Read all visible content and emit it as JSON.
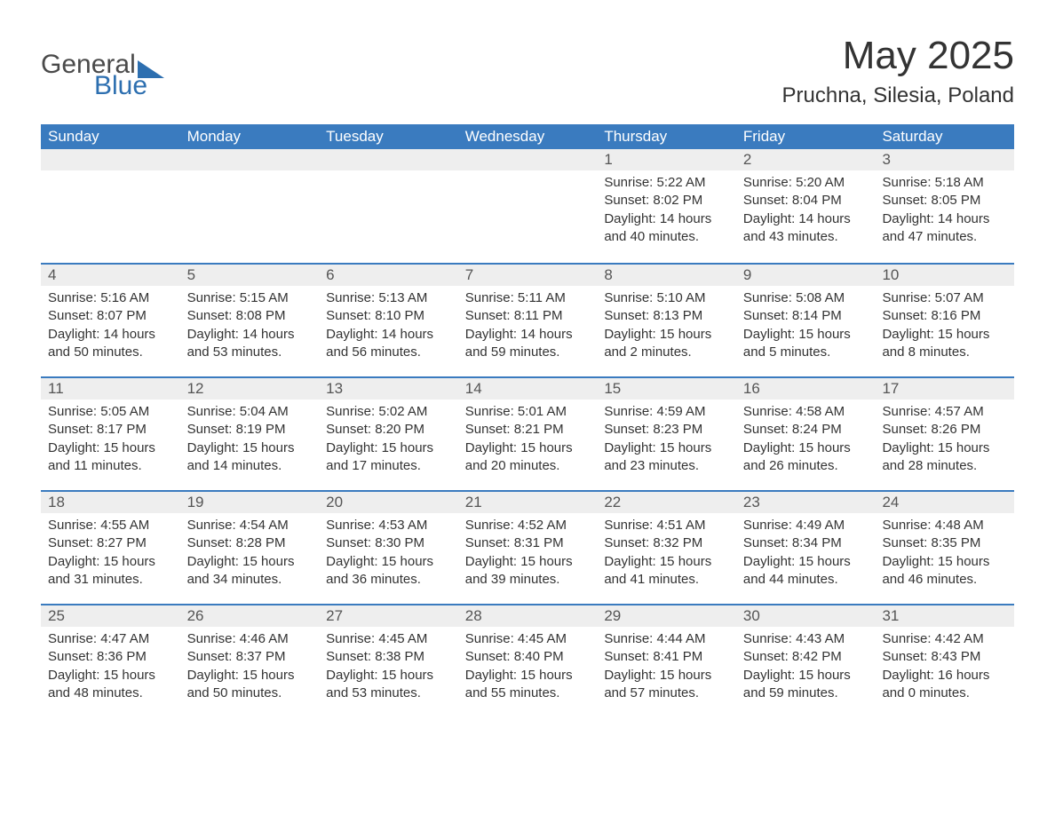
{
  "brand": {
    "part1": "General",
    "part2": "Blue"
  },
  "title": "May 2025",
  "location": "Pruchna, Silesia, Poland",
  "colors": {
    "header_bg": "#3a7bbf",
    "header_text": "#ffffff",
    "daynum_bg": "#eeeeee",
    "text": "#333333",
    "brand_grey": "#4a4a4a",
    "brand_blue": "#2d6fb0"
  },
  "daysOfWeek": [
    "Sunday",
    "Monday",
    "Tuesday",
    "Wednesday",
    "Thursday",
    "Friday",
    "Saturday"
  ],
  "weeks": [
    [
      {
        "n": "",
        "empty": true
      },
      {
        "n": "",
        "empty": true
      },
      {
        "n": "",
        "empty": true
      },
      {
        "n": "",
        "empty": true
      },
      {
        "n": "1",
        "sunrise": "Sunrise: 5:22 AM",
        "sunset": "Sunset: 8:02 PM",
        "d1": "Daylight: 14 hours",
        "d2": "and 40 minutes."
      },
      {
        "n": "2",
        "sunrise": "Sunrise: 5:20 AM",
        "sunset": "Sunset: 8:04 PM",
        "d1": "Daylight: 14 hours",
        "d2": "and 43 minutes."
      },
      {
        "n": "3",
        "sunrise": "Sunrise: 5:18 AM",
        "sunset": "Sunset: 8:05 PM",
        "d1": "Daylight: 14 hours",
        "d2": "and 47 minutes."
      }
    ],
    [
      {
        "n": "4",
        "sunrise": "Sunrise: 5:16 AM",
        "sunset": "Sunset: 8:07 PM",
        "d1": "Daylight: 14 hours",
        "d2": "and 50 minutes."
      },
      {
        "n": "5",
        "sunrise": "Sunrise: 5:15 AM",
        "sunset": "Sunset: 8:08 PM",
        "d1": "Daylight: 14 hours",
        "d2": "and 53 minutes."
      },
      {
        "n": "6",
        "sunrise": "Sunrise: 5:13 AM",
        "sunset": "Sunset: 8:10 PM",
        "d1": "Daylight: 14 hours",
        "d2": "and 56 minutes."
      },
      {
        "n": "7",
        "sunrise": "Sunrise: 5:11 AM",
        "sunset": "Sunset: 8:11 PM",
        "d1": "Daylight: 14 hours",
        "d2": "and 59 minutes."
      },
      {
        "n": "8",
        "sunrise": "Sunrise: 5:10 AM",
        "sunset": "Sunset: 8:13 PM",
        "d1": "Daylight: 15 hours",
        "d2": "and 2 minutes."
      },
      {
        "n": "9",
        "sunrise": "Sunrise: 5:08 AM",
        "sunset": "Sunset: 8:14 PM",
        "d1": "Daylight: 15 hours",
        "d2": "and 5 minutes."
      },
      {
        "n": "10",
        "sunrise": "Sunrise: 5:07 AM",
        "sunset": "Sunset: 8:16 PM",
        "d1": "Daylight: 15 hours",
        "d2": "and 8 minutes."
      }
    ],
    [
      {
        "n": "11",
        "sunrise": "Sunrise: 5:05 AM",
        "sunset": "Sunset: 8:17 PM",
        "d1": "Daylight: 15 hours",
        "d2": "and 11 minutes."
      },
      {
        "n": "12",
        "sunrise": "Sunrise: 5:04 AM",
        "sunset": "Sunset: 8:19 PM",
        "d1": "Daylight: 15 hours",
        "d2": "and 14 minutes."
      },
      {
        "n": "13",
        "sunrise": "Sunrise: 5:02 AM",
        "sunset": "Sunset: 8:20 PM",
        "d1": "Daylight: 15 hours",
        "d2": "and 17 minutes."
      },
      {
        "n": "14",
        "sunrise": "Sunrise: 5:01 AM",
        "sunset": "Sunset: 8:21 PM",
        "d1": "Daylight: 15 hours",
        "d2": "and 20 minutes."
      },
      {
        "n": "15",
        "sunrise": "Sunrise: 4:59 AM",
        "sunset": "Sunset: 8:23 PM",
        "d1": "Daylight: 15 hours",
        "d2": "and 23 minutes."
      },
      {
        "n": "16",
        "sunrise": "Sunrise: 4:58 AM",
        "sunset": "Sunset: 8:24 PM",
        "d1": "Daylight: 15 hours",
        "d2": "and 26 minutes."
      },
      {
        "n": "17",
        "sunrise": "Sunrise: 4:57 AM",
        "sunset": "Sunset: 8:26 PM",
        "d1": "Daylight: 15 hours",
        "d2": "and 28 minutes."
      }
    ],
    [
      {
        "n": "18",
        "sunrise": "Sunrise: 4:55 AM",
        "sunset": "Sunset: 8:27 PM",
        "d1": "Daylight: 15 hours",
        "d2": "and 31 minutes."
      },
      {
        "n": "19",
        "sunrise": "Sunrise: 4:54 AM",
        "sunset": "Sunset: 8:28 PM",
        "d1": "Daylight: 15 hours",
        "d2": "and 34 minutes."
      },
      {
        "n": "20",
        "sunrise": "Sunrise: 4:53 AM",
        "sunset": "Sunset: 8:30 PM",
        "d1": "Daylight: 15 hours",
        "d2": "and 36 minutes."
      },
      {
        "n": "21",
        "sunrise": "Sunrise: 4:52 AM",
        "sunset": "Sunset: 8:31 PM",
        "d1": "Daylight: 15 hours",
        "d2": "and 39 minutes."
      },
      {
        "n": "22",
        "sunrise": "Sunrise: 4:51 AM",
        "sunset": "Sunset: 8:32 PM",
        "d1": "Daylight: 15 hours",
        "d2": "and 41 minutes."
      },
      {
        "n": "23",
        "sunrise": "Sunrise: 4:49 AM",
        "sunset": "Sunset: 8:34 PM",
        "d1": "Daylight: 15 hours",
        "d2": "and 44 minutes."
      },
      {
        "n": "24",
        "sunrise": "Sunrise: 4:48 AM",
        "sunset": "Sunset: 8:35 PM",
        "d1": "Daylight: 15 hours",
        "d2": "and 46 minutes."
      }
    ],
    [
      {
        "n": "25",
        "sunrise": "Sunrise: 4:47 AM",
        "sunset": "Sunset: 8:36 PM",
        "d1": "Daylight: 15 hours",
        "d2": "and 48 minutes."
      },
      {
        "n": "26",
        "sunrise": "Sunrise: 4:46 AM",
        "sunset": "Sunset: 8:37 PM",
        "d1": "Daylight: 15 hours",
        "d2": "and 50 minutes."
      },
      {
        "n": "27",
        "sunrise": "Sunrise: 4:45 AM",
        "sunset": "Sunset: 8:38 PM",
        "d1": "Daylight: 15 hours",
        "d2": "and 53 minutes."
      },
      {
        "n": "28",
        "sunrise": "Sunrise: 4:45 AM",
        "sunset": "Sunset: 8:40 PM",
        "d1": "Daylight: 15 hours",
        "d2": "and 55 minutes."
      },
      {
        "n": "29",
        "sunrise": "Sunrise: 4:44 AM",
        "sunset": "Sunset: 8:41 PM",
        "d1": "Daylight: 15 hours",
        "d2": "and 57 minutes."
      },
      {
        "n": "30",
        "sunrise": "Sunrise: 4:43 AM",
        "sunset": "Sunset: 8:42 PM",
        "d1": "Daylight: 15 hours",
        "d2": "and 59 minutes."
      },
      {
        "n": "31",
        "sunrise": "Sunrise: 4:42 AM",
        "sunset": "Sunset: 8:43 PM",
        "d1": "Daylight: 16 hours",
        "d2": "and 0 minutes."
      }
    ]
  ]
}
